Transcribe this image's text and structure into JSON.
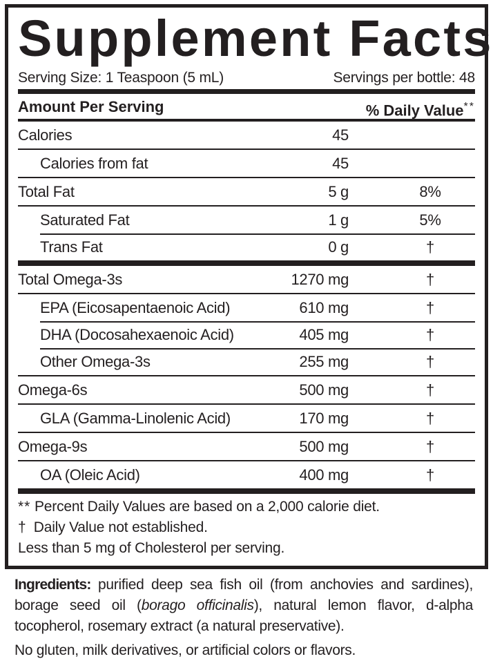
{
  "title": "Supplement Facts",
  "serving_size": "Serving Size: 1 Teaspoon (5 mL)",
  "servings_per": "Servings per bottle: 48",
  "header": {
    "amount": "Amount Per Serving",
    "dv": "% Daily Value",
    "dv_mark": "**"
  },
  "rows": [
    {
      "label": "Calories",
      "amount": "45",
      "dv": ""
    },
    {
      "label": "Calories from fat",
      "amount": "45",
      "dv": ""
    },
    {
      "label": "Total Fat",
      "amount": "5 g",
      "dv": "8%"
    },
    {
      "label": "Saturated Fat",
      "amount": "1 g",
      "dv": "5%"
    },
    {
      "label": "Trans Fat",
      "amount": "0 g",
      "dv": "†"
    },
    {
      "label": "Total Omega-3s",
      "amount": "1270 mg",
      "dv": "†"
    },
    {
      "label": "EPA (Eicosapentaenoic Acid)",
      "amount": "610 mg",
      "dv": "†"
    },
    {
      "label": "DHA (Docosahexaenoic Acid)",
      "amount": "405 mg",
      "dv": "†"
    },
    {
      "label": "Other Omega-3s",
      "amount": "255 mg",
      "dv": "†"
    },
    {
      "label": "Omega-6s",
      "amount": "500 mg",
      "dv": "†"
    },
    {
      "label": "GLA (Gamma-Linolenic Acid)",
      "amount": "170 mg",
      "dv": "†"
    },
    {
      "label": "Omega-9s",
      "amount": "500 mg",
      "dv": "†"
    },
    {
      "label": "OA (Oleic Acid)",
      "amount": "400 mg",
      "dv": "†"
    }
  ],
  "footnotes": {
    "dv_mark": "**",
    "dv_note": " Percent Daily Values are based on a 2,000 calorie diet.",
    "dagger": "†",
    "dagger_note": "  Daily Value not established.",
    "cholesterol": "Less than 5 mg of Cholesterol per serving."
  },
  "ingredients": {
    "label": "Ingredients:",
    "text1": " purified deep sea fish oil (from anchovies and sardines), borage seed oil (",
    "italic": "borago officinalis",
    "text2": "), natural lemon flavor, d-alpha tocopherol, rosemary extract (a natural preservative)."
  },
  "free_from": "No gluten, milk derivatives, or artificial colors or flavors."
}
